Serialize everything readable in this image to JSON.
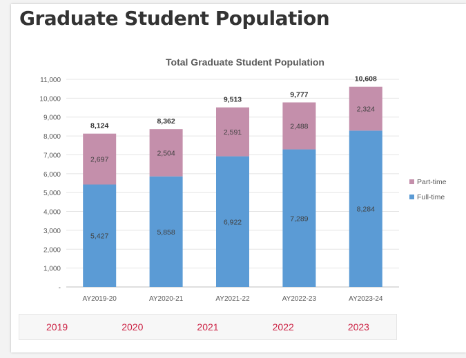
{
  "page_title": "Graduate Student Population",
  "year_tabs": [
    "2019",
    "2020",
    "2021",
    "2022",
    "2023"
  ],
  "colors": {
    "full_time": "#5b9bd5",
    "part_time": "#c48fab",
    "tab_text": "#cc2244"
  },
  "chart_data": {
    "type": "bar",
    "stacked": true,
    "title": "Total Graduate Student Population",
    "categories": [
      "AY2019-20",
      "AY2020-21",
      "AY2021-22",
      "AY2022-23",
      "AY2023-24"
    ],
    "series": [
      {
        "name": "Full-time",
        "values": [
          5427,
          5858,
          6922,
          7289,
          8284
        ],
        "labels": [
          "5,427",
          "5,858",
          "6,922",
          "7,289",
          "8,284"
        ]
      },
      {
        "name": "Part-time",
        "values": [
          2697,
          2504,
          2591,
          2488,
          2324
        ],
        "labels": [
          "2,697",
          "2,504",
          "2,591",
          "2,488",
          "2,324"
        ]
      }
    ],
    "totals": [
      "8,124",
      "8,362",
      "9,513",
      "9,777",
      "10,608"
    ],
    "ylim": [
      0,
      11000
    ],
    "yticks": [
      "-",
      "1,000",
      "2,000",
      "3,000",
      "4,000",
      "5,000",
      "6,000",
      "7,000",
      "8,000",
      "9,000",
      "10,000",
      "11,000"
    ],
    "legend_position": "right",
    "legend": [
      "Part-time",
      "Full-time"
    ],
    "xlabel": "",
    "ylabel": ""
  }
}
